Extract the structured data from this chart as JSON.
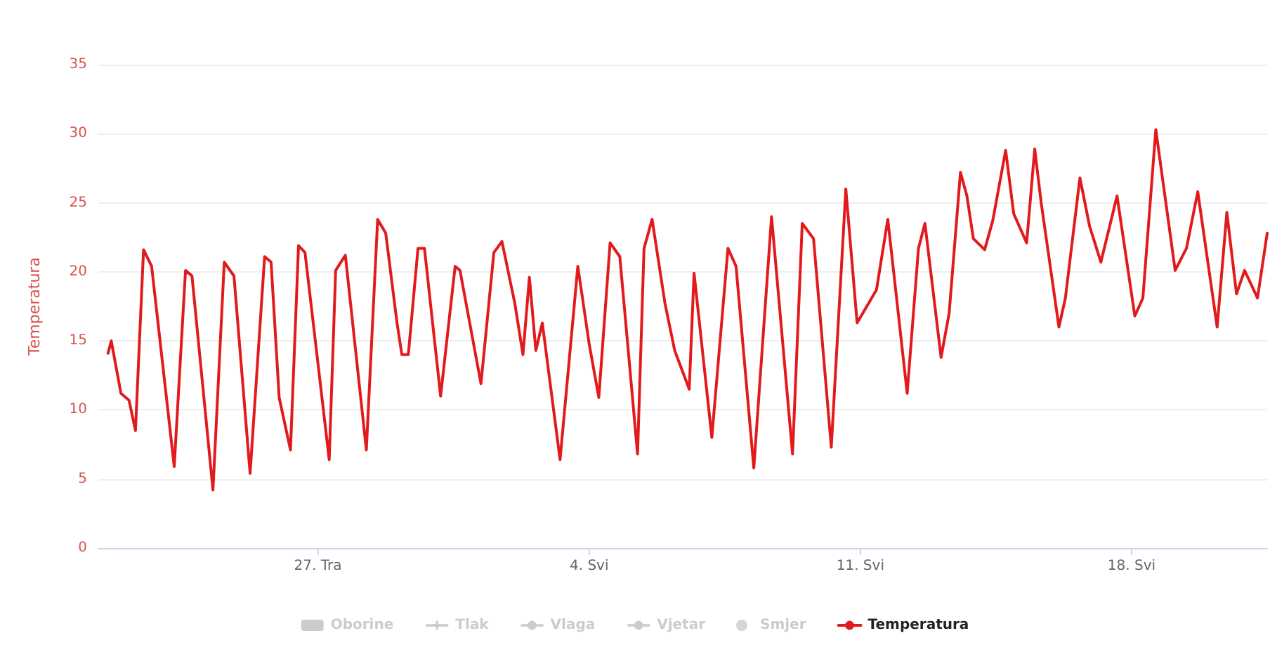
{
  "chart_data": {
    "type": "line",
    "ylabel": "Temperatura",
    "ylim": [
      0,
      35
    ],
    "yticks": [
      0,
      5,
      10,
      15,
      20,
      25,
      30,
      35
    ],
    "grid": "y",
    "legend": "bottom",
    "marker": "none",
    "line_style": "solid",
    "xlim": [
      "--04-21T08:00",
      "--05-21T12:00"
    ],
    "xticks": [
      {
        "value": "--04-27",
        "label": "27. Tra"
      },
      {
        "value": "--05-04",
        "label": "4. Svi"
      },
      {
        "value": "--05-11",
        "label": "11. Svi"
      },
      {
        "value": "--05-18",
        "label": "18. Svi"
      }
    ],
    "series": [
      {
        "name": "Oborine",
        "type": "bar"
      },
      {
        "name": "Tlak",
        "type": "line",
        "marker": "cross"
      },
      {
        "name": "Vlaga",
        "type": "line"
      },
      {
        "name": "Vjetar",
        "type": "line"
      },
      {
        "name": "Smjer",
        "type": "scatter"
      },
      {
        "name": "Temperatura",
        "color": "#e31a1c",
        "x": [
          "--04-21T14:00",
          "--04-21T16:00",
          "--04-21T22:00",
          "--04-22T03:00",
          "--04-22T07:00",
          "--04-22T12:00",
          "--04-22T17:00",
          "--04-23T07:00",
          "--04-23T14:00",
          "--04-23T18:00",
          "--04-24T07:00",
          "--04-24T14:00",
          "--04-24T20:00",
          "--04-25T06:00",
          "--04-25T15:00",
          "--04-25T19:00",
          "--04-26T00:00",
          "--04-26T07:00",
          "--04-26T12:00",
          "--04-26T16:00",
          "--04-27T07:00",
          "--04-27T11:00",
          "--04-27T17:00",
          "--04-28T06:00",
          "--04-28T13:00",
          "--04-28T18:00",
          "--04-29T01:00",
          "--04-29T04:00",
          "--04-29T08:00",
          "--04-29T14:00",
          "--04-29T18:00",
          "--04-30T04:00",
          "--04-30T13:00",
          "--04-30T16:00",
          "--05-01T05:00",
          "--05-01T13:00",
          "--05-01T18:00",
          "--05-02T02:00",
          "--05-02T07:00",
          "--05-02T11:00",
          "--05-02T15:00",
          "--05-02T19:00",
          "--05-03T06:00",
          "--05-03T17:00",
          "--05-04T00:00",
          "--05-04T06:00",
          "--05-04T13:00",
          "--05-04T19:00",
          "--05-05T06:00",
          "--05-05T10:00",
          "--05-05T15:00",
          "--05-05T23:00",
          "--05-06T05:00",
          "--05-06T14:00",
          "--05-06T17:00",
          "--05-07T04:00",
          "--05-07T14:00",
          "--05-07T19:00",
          "--05-08T06:00",
          "--05-08T17:00",
          "--05-09T06:00",
          "--05-09T12:00",
          "--05-09T19:00",
          "--05-10T06:00",
          "--05-10T15:00",
          "--05-10T22:00",
          "--05-11T10:00",
          "--05-11T17:00",
          "--05-12T05:00",
          "--05-12T12:00",
          "--05-12T16:00",
          "--05-13T02:00",
          "--05-13T07:00",
          "--05-13T14:00",
          "--05-13T18:00",
          "--05-13T22:00",
          "--05-14T05:00",
          "--05-14T10:00",
          "--05-14T18:00",
          "--05-14T23:00",
          "--05-15T07:00",
          "--05-15T12:00",
          "--05-15T16:00",
          "--05-16T03:00",
          "--05-16T07:00",
          "--05-16T16:00",
          "--05-16T22:00",
          "--05-17T05:00",
          "--05-17T15:00",
          "--05-18T02:00",
          "--05-18T07:00",
          "--05-18T15:00",
          "--05-19T03:00",
          "--05-19T10:00",
          "--05-19T17:00",
          "--05-20T05:00",
          "--05-20T11:00",
          "--05-20T17:00",
          "--05-20T22:00",
          "--05-21T06:00",
          "--05-21T12:00"
        ],
        "values": [
          14.1,
          15.0,
          11.2,
          10.7,
          8.5,
          21.6,
          20.4,
          5.9,
          20.1,
          19.7,
          4.2,
          20.7,
          19.7,
          5.4,
          21.1,
          20.7,
          10.9,
          7.1,
          21.9,
          21.4,
          6.4,
          20.1,
          21.2,
          7.1,
          23.8,
          22.8,
          16.3,
          14.0,
          14.0,
          21.7,
          21.7,
          11.0,
          20.4,
          20.1,
          11.9,
          21.4,
          22.2,
          17.7,
          14.0,
          19.6,
          14.3,
          16.3,
          6.4,
          20.4,
          14.8,
          10.9,
          22.1,
          21.1,
          6.8,
          21.7,
          23.8,
          17.7,
          14.3,
          11.5,
          19.9,
          8.0,
          21.7,
          20.4,
          5.8,
          24.0,
          6.8,
          23.5,
          22.4,
          7.3,
          26.0,
          16.3,
          18.7,
          23.8,
          11.2,
          21.7,
          23.5,
          13.8,
          17.0,
          27.2,
          25.5,
          22.4,
          21.6,
          23.7,
          28.8,
          24.2,
          22.1,
          28.9,
          25.0,
          16.0,
          18.1,
          26.8,
          23.3,
          20.7,
          25.5,
          16.8,
          18.1,
          30.3,
          20.1,
          21.7,
          25.8,
          16.0,
          24.3,
          18.4,
          20.1,
          18.1,
          22.8
        ]
      }
    ]
  }
}
